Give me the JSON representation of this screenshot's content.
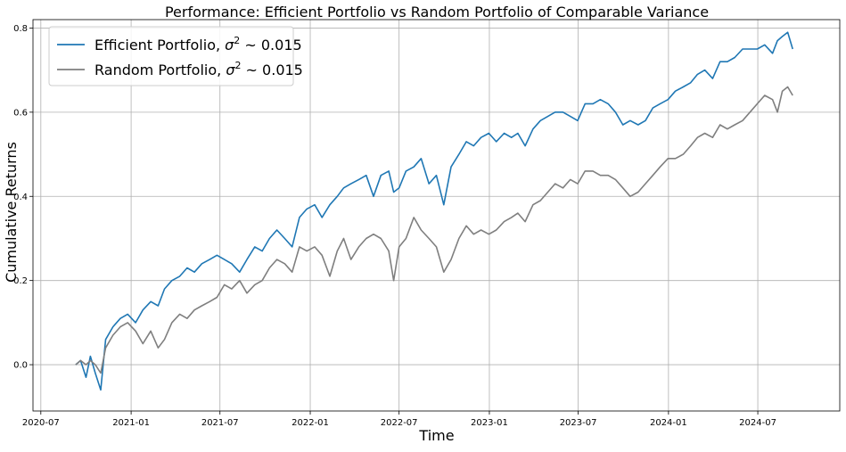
{
  "chart_data": {
    "type": "line",
    "title": "Performance: Efficient Portfolio vs Random Portfolio of Comparable Variance",
    "xlabel": "Time",
    "ylabel": "Cumulative Returns",
    "x_ticks": [
      "2020-07",
      "2021-01",
      "2021-07",
      "2022-01",
      "2022-07",
      "2023-01",
      "2023-07",
      "2024-01",
      "2024-07"
    ],
    "y_ticks": [
      "0.0",
      "0.2",
      "0.4",
      "0.6",
      "0.8"
    ],
    "xlim": [
      "2020-06-15",
      "2024-12-15"
    ],
    "ylim": [
      -0.11,
      0.82
    ],
    "grid": true,
    "legend_position": "top-left",
    "series": [
      {
        "name": "Efficient Portfolio, σ² ~ 0.015",
        "legend_prefix": "Efficient Portfolio, ",
        "color": "#1f77b4",
        "x": [
          "2020-09-10",
          "2020-09-20",
          "2020-10-01",
          "2020-10-10",
          "2020-10-20",
          "2020-10-31",
          "2020-11-10",
          "2020-11-25",
          "2020-12-10",
          "2020-12-25",
          "2021-01-10",
          "2021-01-25",
          "2021-02-10",
          "2021-02-25",
          "2021-03-10",
          "2021-03-25",
          "2021-04-10",
          "2021-04-25",
          "2021-05-10",
          "2021-05-25",
          "2021-06-10",
          "2021-06-25",
          "2021-07-10",
          "2021-07-25",
          "2021-08-10",
          "2021-08-25",
          "2021-09-10",
          "2021-09-25",
          "2021-10-10",
          "2021-10-25",
          "2021-11-10",
          "2021-11-25",
          "2021-12-10",
          "2021-12-25",
          "2022-01-10",
          "2022-01-25",
          "2022-02-10",
          "2022-02-25",
          "2022-03-10",
          "2022-03-25",
          "2022-04-10",
          "2022-04-25",
          "2022-05-10",
          "2022-05-25",
          "2022-06-10",
          "2022-06-20",
          "2022-07-01",
          "2022-07-15",
          "2022-07-31",
          "2022-08-15",
          "2022-08-31",
          "2022-09-15",
          "2022-09-30",
          "2022-10-15",
          "2022-10-31",
          "2022-11-15",
          "2022-11-30",
          "2022-12-15",
          "2022-12-31",
          "2023-01-15",
          "2023-01-31",
          "2023-02-15",
          "2023-02-28",
          "2023-03-15",
          "2023-03-31",
          "2023-04-15",
          "2023-04-30",
          "2023-05-15",
          "2023-05-31",
          "2023-06-15",
          "2023-06-30",
          "2023-07-15",
          "2023-07-31",
          "2023-08-15",
          "2023-08-31",
          "2023-09-15",
          "2023-09-30",
          "2023-10-15",
          "2023-10-31",
          "2023-11-15",
          "2023-11-30",
          "2023-12-15",
          "2023-12-31",
          "2024-01-15",
          "2024-01-31",
          "2024-02-15",
          "2024-02-29",
          "2024-03-15",
          "2024-03-31",
          "2024-04-15",
          "2024-04-30",
          "2024-05-15",
          "2024-05-31",
          "2024-06-15",
          "2024-06-30",
          "2024-07-15",
          "2024-07-31",
          "2024-08-10",
          "2024-08-20",
          "2024-08-31",
          "2024-09-10"
        ],
        "values": [
          0.0,
          0.01,
          -0.03,
          0.02,
          -0.02,
          -0.06,
          0.06,
          0.09,
          0.11,
          0.12,
          0.1,
          0.13,
          0.15,
          0.14,
          0.18,
          0.2,
          0.21,
          0.23,
          0.22,
          0.24,
          0.25,
          0.26,
          0.25,
          0.24,
          0.22,
          0.25,
          0.28,
          0.27,
          0.3,
          0.32,
          0.3,
          0.28,
          0.35,
          0.37,
          0.38,
          0.35,
          0.38,
          0.4,
          0.42,
          0.43,
          0.44,
          0.45,
          0.4,
          0.45,
          0.46,
          0.41,
          0.42,
          0.46,
          0.47,
          0.49,
          0.43,
          0.45,
          0.38,
          0.47,
          0.5,
          0.53,
          0.52,
          0.54,
          0.55,
          0.53,
          0.55,
          0.54,
          0.55,
          0.52,
          0.56,
          0.58,
          0.59,
          0.6,
          0.6,
          0.59,
          0.58,
          0.62,
          0.62,
          0.63,
          0.62,
          0.6,
          0.57,
          0.58,
          0.57,
          0.58,
          0.61,
          0.62,
          0.63,
          0.65,
          0.66,
          0.67,
          0.69,
          0.7,
          0.68,
          0.72,
          0.72,
          0.73,
          0.75,
          0.75,
          0.75,
          0.76,
          0.74,
          0.77,
          0.78,
          0.79,
          0.75
        ]
      },
      {
        "name": "Random Portfolio, σ² ~ 0.015",
        "legend_prefix": "Random Portfolio, ",
        "color": "#7f7f7f",
        "x": [
          "2020-09-10",
          "2020-09-20",
          "2020-10-01",
          "2020-10-10",
          "2020-10-20",
          "2020-10-31",
          "2020-11-10",
          "2020-11-25",
          "2020-12-10",
          "2020-12-25",
          "2021-01-10",
          "2021-01-25",
          "2021-02-10",
          "2021-02-25",
          "2021-03-10",
          "2021-03-25",
          "2021-04-10",
          "2021-04-25",
          "2021-05-10",
          "2021-05-25",
          "2021-06-10",
          "2021-06-25",
          "2021-07-10",
          "2021-07-25",
          "2021-08-10",
          "2021-08-25",
          "2021-09-10",
          "2021-09-25",
          "2021-10-10",
          "2021-10-25",
          "2021-11-10",
          "2021-11-25",
          "2021-12-10",
          "2021-12-25",
          "2022-01-10",
          "2022-01-25",
          "2022-02-10",
          "2022-02-25",
          "2022-03-10",
          "2022-03-25",
          "2022-04-10",
          "2022-04-25",
          "2022-05-10",
          "2022-05-25",
          "2022-06-10",
          "2022-06-20",
          "2022-07-01",
          "2022-07-15",
          "2022-07-31",
          "2022-08-15",
          "2022-08-31",
          "2022-09-15",
          "2022-09-30",
          "2022-10-15",
          "2022-10-31",
          "2022-11-15",
          "2022-11-30",
          "2022-12-15",
          "2022-12-31",
          "2023-01-15",
          "2023-01-31",
          "2023-02-15",
          "2023-02-28",
          "2023-03-15",
          "2023-03-31",
          "2023-04-15",
          "2023-04-30",
          "2023-05-15",
          "2023-05-31",
          "2023-06-15",
          "2023-06-30",
          "2023-07-15",
          "2023-07-31",
          "2023-08-15",
          "2023-08-31",
          "2023-09-15",
          "2023-09-30",
          "2023-10-15",
          "2023-10-31",
          "2023-11-15",
          "2023-11-30",
          "2023-12-15",
          "2023-12-31",
          "2024-01-15",
          "2024-01-31",
          "2024-02-15",
          "2024-02-29",
          "2024-03-15",
          "2024-03-31",
          "2024-04-15",
          "2024-04-30",
          "2024-05-15",
          "2024-05-31",
          "2024-06-15",
          "2024-06-30",
          "2024-07-15",
          "2024-07-31",
          "2024-08-10",
          "2024-08-20",
          "2024-08-31",
          "2024-09-10"
        ],
        "values": [
          0.0,
          0.01,
          0.0,
          0.01,
          0.0,
          -0.02,
          0.04,
          0.07,
          0.09,
          0.1,
          0.08,
          0.05,
          0.08,
          0.04,
          0.06,
          0.1,
          0.12,
          0.11,
          0.13,
          0.14,
          0.15,
          0.16,
          0.19,
          0.18,
          0.2,
          0.17,
          0.19,
          0.2,
          0.23,
          0.25,
          0.24,
          0.22,
          0.28,
          0.27,
          0.28,
          0.26,
          0.21,
          0.27,
          0.3,
          0.25,
          0.28,
          0.3,
          0.31,
          0.3,
          0.27,
          0.2,
          0.28,
          0.3,
          0.35,
          0.32,
          0.3,
          0.28,
          0.22,
          0.25,
          0.3,
          0.33,
          0.31,
          0.32,
          0.31,
          0.32,
          0.34,
          0.35,
          0.36,
          0.34,
          0.38,
          0.39,
          0.41,
          0.43,
          0.42,
          0.44,
          0.43,
          0.46,
          0.46,
          0.45,
          0.45,
          0.44,
          0.42,
          0.4,
          0.41,
          0.43,
          0.45,
          0.47,
          0.49,
          0.49,
          0.5,
          0.52,
          0.54,
          0.55,
          0.54,
          0.57,
          0.56,
          0.57,
          0.58,
          0.6,
          0.62,
          0.64,
          0.63,
          0.6,
          0.65,
          0.66,
          0.64
        ]
      }
    ]
  }
}
